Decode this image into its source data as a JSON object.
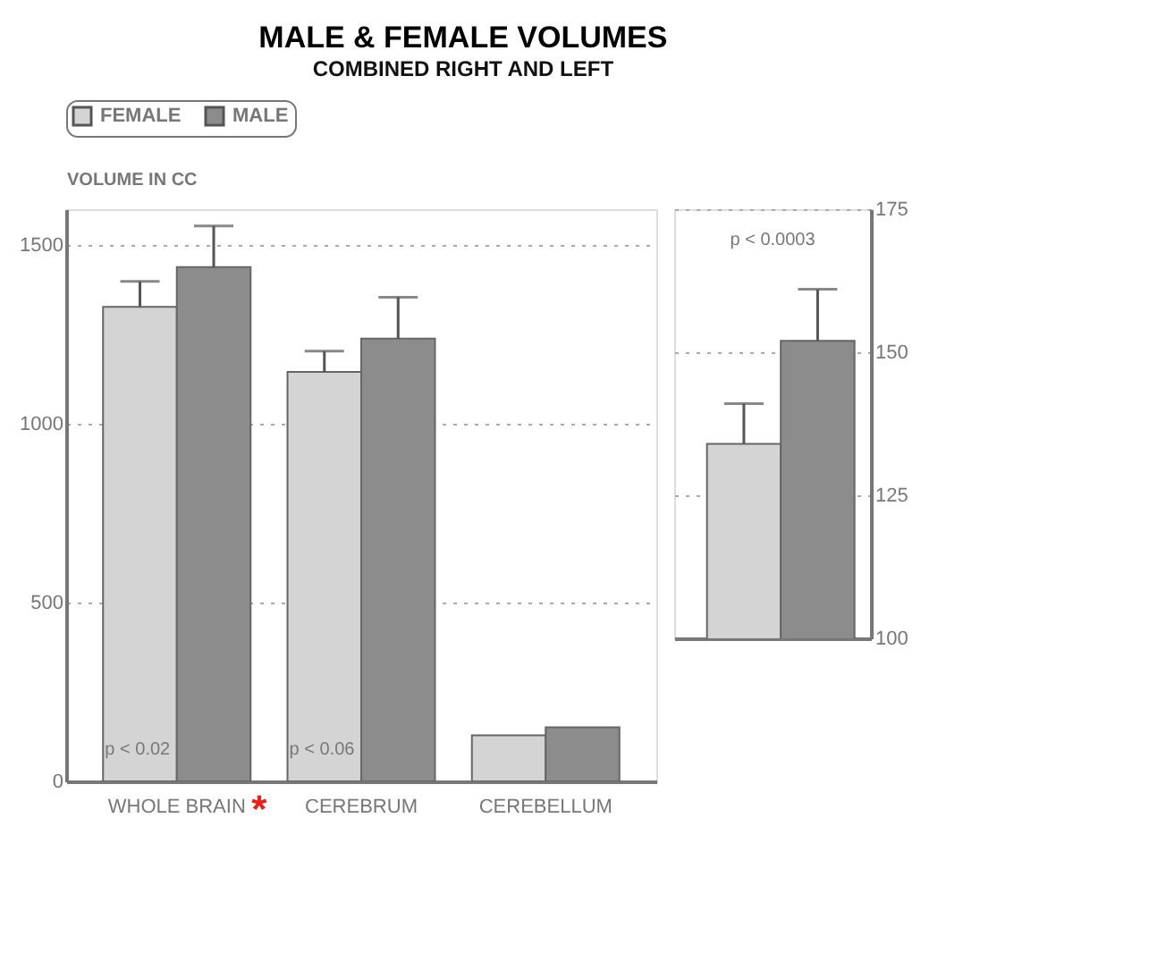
{
  "chart_data": [
    {
      "type": "bar",
      "title": "MALE & FEMALE VOLUMES",
      "subtitle": "COMBINED RIGHT AND LEFT",
      "ylabel": "VOLUME IN CC",
      "categories": [
        "WHOLE BRAIN",
        "CEREBRUM",
        "CEREBELLUM"
      ],
      "series": [
        {
          "name": "FEMALE",
          "color": "#d4d4d4",
          "values": [
            1327,
            1145,
            129
          ],
          "errors": [
            [
              1327,
              1398
            ],
            [
              1145,
              1203
            ],
            null
          ]
        },
        {
          "name": "MALE",
          "color": "#8c8c8c",
          "values": [
            1438,
            1238,
            151
          ],
          "errors": [
            [
              1438,
              1553
            ],
            [
              1238,
              1354
            ],
            null
          ]
        }
      ],
      "ylim": [
        0,
        1600
      ],
      "yticks": [
        0,
        500,
        {
          "value": 1000,
          "label": "1000"
        },
        {
          "value": 1500,
          "label": "1500"
        }
      ],
      "grid": "y",
      "legend": "top",
      "annotations": [
        {
          "text": "p < 0.02",
          "x": "WHOLE BRAIN",
          "y": 90
        },
        {
          "text": "p < 0.06",
          "x": "CEREBRUM",
          "y": 90
        },
        "*"
      ]
    },
    {
      "type": "bar",
      "categories": [
        null
      ],
      "series": [
        {
          "color": "#d4d4d4",
          "values": [
            134
          ],
          "errors": [
            [
              134,
              141
            ]
          ]
        },
        {
          "color": "#8c8c8c",
          "values": [
            152
          ],
          "errors": [
            [
              152,
              161
            ]
          ]
        }
      ],
      "ylim": [
        100,
        175
      ],
      "yticks": [
        100,
        125,
        150,
        175
      ],
      "grid": "y",
      "tick_labels": "y",
      "annotations": [
        "p < 0.0003"
      ]
    }
  ]
}
